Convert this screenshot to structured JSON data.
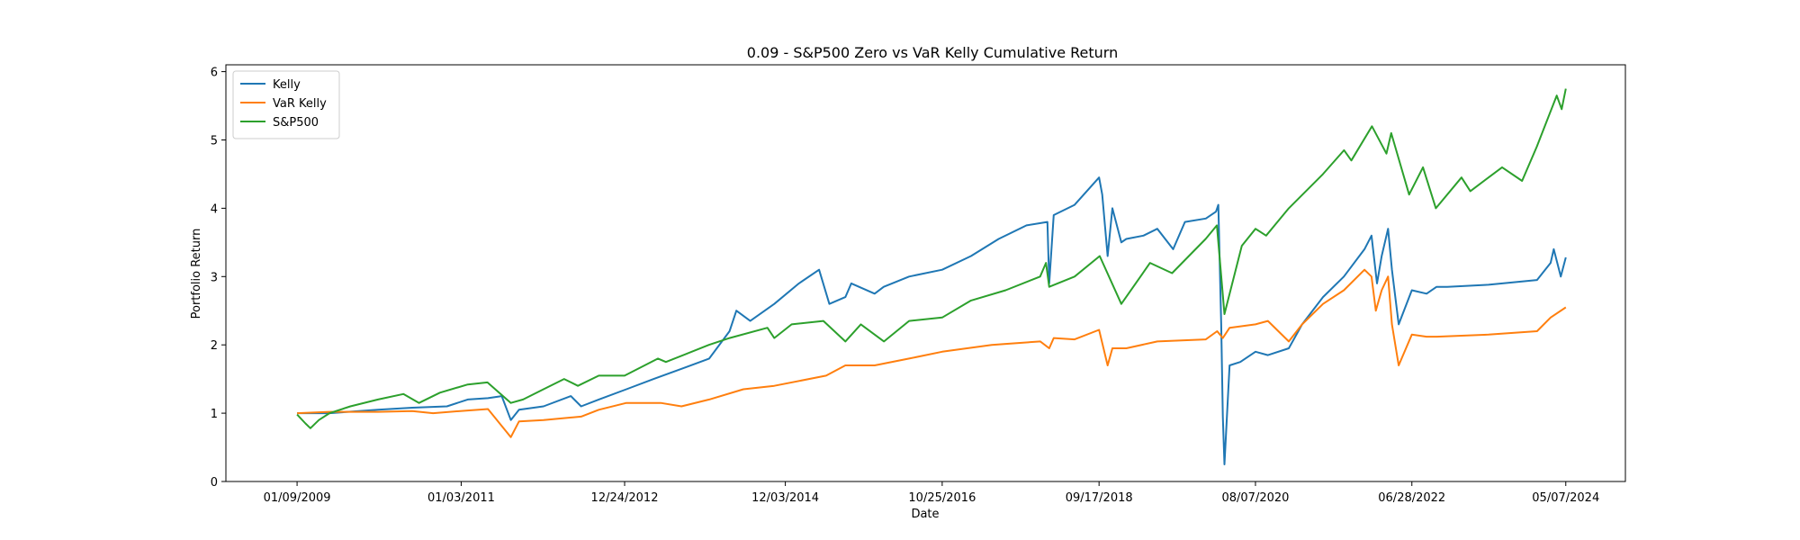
{
  "chart_data": {
    "type": "line",
    "title": "0.09 - S&P500 Zero vs VaR Kelly Cumulative Return",
    "xlabel": "Date",
    "ylabel": "Portfolio Return",
    "ylim": [
      0,
      6.1
    ],
    "yticks": [
      0,
      1,
      2,
      3,
      4,
      5,
      6
    ],
    "xticks": [
      "01/09/2009",
      "01/03/2011",
      "12/24/2012",
      "12/03/2014",
      "10/25/2016",
      "09/17/2018",
      "08/07/2020",
      "06/28/2022",
      "05/07/2024"
    ],
    "xlim": [
      "2008-03-01",
      "2025-01-25"
    ],
    "grid": false,
    "legend_position": "top-left",
    "series": [
      {
        "name": "Kelly",
        "color": "#1f77b4",
        "x": [
          "2009-01-09",
          "2009-06-01",
          "2010-01-01",
          "2010-06-01",
          "2010-11-01",
          "2011-02-01",
          "2011-05-01",
          "2011-07-01",
          "2011-08-10",
          "2011-09-15",
          "2012-01-01",
          "2012-05-01",
          "2012-06-15",
          "2012-09-01",
          "2013-01-01",
          "2013-05-01",
          "2013-09-01",
          "2014-01-01",
          "2014-04-01",
          "2014-05-01",
          "2014-07-01",
          "2014-10-15",
          "2015-02-01",
          "2015-05-01",
          "2015-06-15",
          "2015-08-25",
          "2015-09-20",
          "2016-01-01",
          "2016-02-10",
          "2016-06-01",
          "2016-10-25",
          "2017-03-01",
          "2017-07-01",
          "2017-11-01",
          "2018-02-01",
          "2018-02-09",
          "2018-03-01",
          "2018-06-01",
          "2018-09-17",
          "2018-10-01",
          "2018-10-25",
          "2018-11-15",
          "2018-12-24",
          "2019-01-15",
          "2019-04-01",
          "2019-06-01",
          "2019-08-10",
          "2019-10-01",
          "2020-01-01",
          "2020-02-15",
          "2020-02-25",
          "2020-03-09",
          "2020-03-16",
          "2020-03-23",
          "2020-04-15",
          "2020-06-01",
          "2020-08-07",
          "2020-10-01",
          "2021-01-01",
          "2021-03-01",
          "2021-06-01",
          "2021-09-01",
          "2021-12-01",
          "2022-01-01",
          "2022-01-25",
          "2022-02-15",
          "2022-03-15",
          "2022-04-01",
          "2022-05-01",
          "2022-06-28",
          "2022-09-01",
          "2022-10-15",
          "2022-12-01",
          "2023-06-01",
          "2024-01-01",
          "2024-03-01",
          "2024-03-15",
          "2024-04-15",
          "2024-05-07"
        ],
        "values": [
          1.0,
          1.0,
          1.05,
          1.08,
          1.1,
          1.2,
          1.22,
          1.25,
          0.9,
          1.05,
          1.1,
          1.25,
          1.1,
          1.2,
          1.35,
          1.5,
          1.65,
          1.8,
          2.2,
          2.5,
          2.35,
          2.6,
          2.9,
          3.1,
          2.6,
          2.7,
          2.9,
          2.75,
          2.85,
          3.0,
          3.1,
          3.3,
          3.55,
          3.75,
          3.8,
          2.9,
          3.9,
          4.05,
          4.45,
          4.2,
          3.3,
          4.0,
          3.5,
          3.55,
          3.6,
          3.7,
          3.4,
          3.8,
          3.85,
          3.95,
          4.05,
          2.3,
          0.95,
          0.25,
          1.7,
          1.75,
          1.9,
          1.85,
          1.95,
          2.3,
          2.7,
          3.0,
          3.4,
          3.6,
          2.9,
          3.3,
          3.7,
          3.1,
          2.3,
          2.8,
          2.75,
          2.85,
          2.85,
          2.88,
          2.95,
          3.2,
          3.4,
          3.0,
          3.28
        ]
      },
      {
        "name": "VaR Kelly",
        "color": "#ff7f0e",
        "x": [
          "2009-01-09",
          "2009-06-01",
          "2010-01-01",
          "2010-06-01",
          "2010-09-01",
          "2011-02-01",
          "2011-05-01",
          "2011-08-10",
          "2011-09-15",
          "2012-01-01",
          "2012-06-15",
          "2012-09-01",
          "2013-01-01",
          "2013-06-01",
          "2013-09-01",
          "2014-01-01",
          "2014-06-01",
          "2014-10-15",
          "2015-06-01",
          "2015-08-25",
          "2016-01-01",
          "2016-06-01",
          "2016-10-25",
          "2017-06-01",
          "2018-01-01",
          "2018-02-09",
          "2018-03-01",
          "2018-06-01",
          "2018-09-17",
          "2018-10-25",
          "2018-11-15",
          "2019-01-15",
          "2019-06-01",
          "2020-01-01",
          "2020-02-20",
          "2020-03-16",
          "2020-04-15",
          "2020-08-07",
          "2020-10-01",
          "2021-01-01",
          "2021-03-01",
          "2021-06-01",
          "2021-09-01",
          "2021-12-01",
          "2022-01-01",
          "2022-01-20",
          "2022-02-15",
          "2022-03-15",
          "2022-04-01",
          "2022-05-01",
          "2022-06-28",
          "2022-09-01",
          "2022-10-15",
          "2023-06-01",
          "2024-01-01",
          "2024-03-01",
          "2024-05-07"
        ],
        "values": [
          1.0,
          1.02,
          1.02,
          1.03,
          1.0,
          1.04,
          1.06,
          0.65,
          0.88,
          0.9,
          0.95,
          1.05,
          1.15,
          1.15,
          1.1,
          1.2,
          1.35,
          1.4,
          1.55,
          1.7,
          1.7,
          1.8,
          1.9,
          2.0,
          2.05,
          1.95,
          2.1,
          2.08,
          2.22,
          1.7,
          1.95,
          1.95,
          2.05,
          2.08,
          2.2,
          2.1,
          2.25,
          2.3,
          2.35,
          2.05,
          2.3,
          2.6,
          2.8,
          3.1,
          3.0,
          2.5,
          2.8,
          3.0,
          2.3,
          1.7,
          2.15,
          2.12,
          2.12,
          2.15,
          2.2,
          2.4,
          2.55
        ]
      },
      {
        "name": "S&P500",
        "color": "#2ca02c",
        "x": [
          "2009-01-09",
          "2009-02-15",
          "2009-03-09",
          "2009-04-15",
          "2009-06-01",
          "2009-09-01",
          "2010-01-01",
          "2010-04-23",
          "2010-07-01",
          "2010-10-01",
          "2011-02-01",
          "2011-04-29",
          "2011-08-10",
          "2011-10-03",
          "2012-01-01",
          "2012-04-01",
          "2012-06-01",
          "2012-09-01",
          "2012-12-24",
          "2013-05-20",
          "2013-06-24",
          "2013-12-31",
          "2014-04-01",
          "2014-09-15",
          "2014-10-15",
          "2014-12-31",
          "2015-05-20",
          "2015-08-25",
          "2015-11-01",
          "2016-02-11",
          "2016-06-01",
          "2016-10-25",
          "2017-03-01",
          "2017-08-01",
          "2017-12-31",
          "2018-01-26",
          "2018-02-09",
          "2018-06-01",
          "2018-09-20",
          "2018-12-24",
          "2019-04-30",
          "2019-08-05",
          "2019-12-31",
          "2020-02-19",
          "2020-03-23",
          "2020-06-08",
          "2020-08-07",
          "2020-09-23",
          "2021-01-01",
          "2021-06-01",
          "2021-09-02",
          "2021-10-04",
          "2022-01-03",
          "2022-03-08",
          "2022-03-29",
          "2022-06-16",
          "2022-08-16",
          "2022-10-12",
          "2023-02-02",
          "2023-03-13",
          "2023-07-31",
          "2023-10-27",
          "2023-12-31",
          "2024-03-28",
          "2024-04-19",
          "2024-05-07"
        ],
        "values": [
          0.98,
          0.85,
          0.78,
          0.9,
          1.0,
          1.1,
          1.2,
          1.28,
          1.15,
          1.3,
          1.42,
          1.45,
          1.15,
          1.2,
          1.35,
          1.5,
          1.4,
          1.55,
          1.55,
          1.8,
          1.75,
          2.0,
          2.1,
          2.25,
          2.1,
          2.3,
          2.35,
          2.05,
          2.3,
          2.05,
          2.35,
          2.4,
          2.65,
          2.8,
          3.0,
          3.2,
          2.85,
          3.0,
          3.3,
          2.6,
          3.2,
          3.05,
          3.55,
          3.75,
          2.45,
          3.45,
          3.7,
          3.6,
          4.0,
          4.5,
          4.85,
          4.7,
          5.2,
          4.8,
          5.1,
          4.2,
          4.6,
          4.0,
          4.45,
          4.25,
          4.6,
          4.4,
          4.9,
          5.65,
          5.45,
          5.75
        ]
      }
    ]
  }
}
